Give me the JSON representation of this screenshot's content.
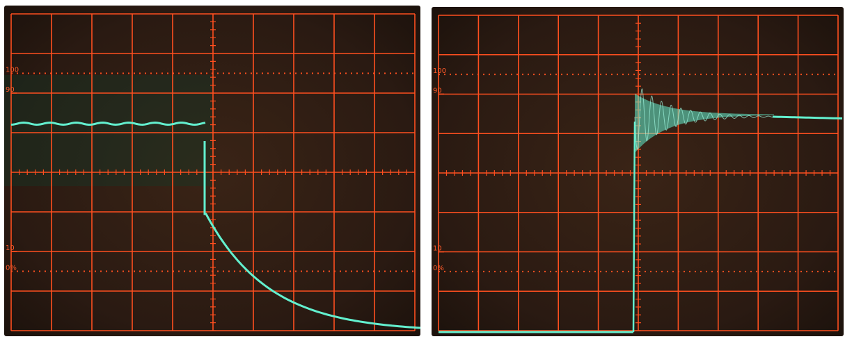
{
  "colors": {
    "screen_background": "#2a1a12",
    "graticule": "#ff4f1f",
    "trace": "#63f0cf",
    "glow": "#0d3b2a"
  },
  "left_photo": {
    "graticule_labels": {
      "top_100": "100",
      "top_90": "90",
      "bottom_10": "10",
      "bottom_0": "0%"
    },
    "trace_description": "falling edge"
  },
  "right_photo": {
    "graticule_labels": {
      "top_100": "100",
      "top_90": "90",
      "bottom_10": "10",
      "bottom_0": "0%"
    },
    "trace_description": "rising edge with ringing"
  }
}
